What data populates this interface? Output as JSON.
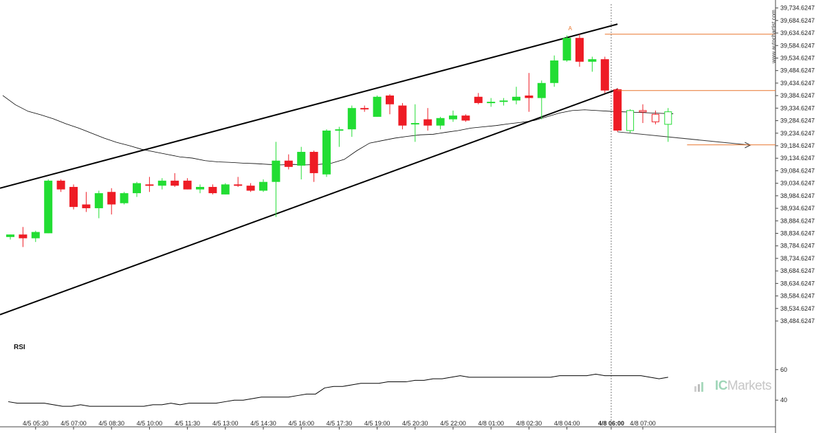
{
  "watermark": "www.autochartist.com",
  "brand": {
    "prefix": "IC",
    "name": "Markets"
  },
  "colors": {
    "up": "#22dd33",
    "down": "#ee1c25",
    "line": "#000000",
    "level": "#e8732a"
  },
  "chart_data": {
    "type": "candlestick",
    "y_ticks": [
      "39,734.6247",
      "39,684.6247",
      "39,634.6247",
      "39,584.6247",
      "39,534.6247",
      "39,484.6247",
      "39,434.6247",
      "39,384.6247",
      "39,334.6247",
      "39,284.6247",
      "39,234.6247",
      "39,184.6247",
      "39,134.6247",
      "39,084.6247",
      "39,034.6247",
      "38,984.6247",
      "38,934.6247",
      "38,884.6247",
      "38,834.6247",
      "38,784.6247",
      "38,734.6247",
      "38,684.6247",
      "38,634.6247",
      "38,584.6247",
      "38,534.6247",
      "38,484.6247"
    ],
    "ylim": [
      38460,
      39750
    ],
    "x_labels": [
      "4/5 05:30",
      "4/5 07:00",
      "4/5 08:30",
      "4/5 10:00",
      "4/5 11:30",
      "4/5 13:00",
      "4/5 14:30",
      "4/5 16:00",
      "4/5 17:30",
      "4/5 19:00",
      "4/5 20:30",
      "4/5 22:00",
      "4/8 01:00",
      "4/8 02:30",
      "4/8 04:00",
      "4/8 06:00",
      "4/8 07:00"
    ],
    "x_label_index": [
      2,
      5,
      8,
      11,
      14,
      17,
      20,
      23,
      26,
      29,
      32,
      35,
      38,
      41,
      44,
      47.5,
      50
    ],
    "bold_label_index": 15,
    "current_bar_index": 47.5,
    "candles": [
      {
        "o": 38820,
        "h": 38830,
        "l": 38810,
        "c": 38830
      },
      {
        "o": 38830,
        "h": 38860,
        "l": 38780,
        "c": 38815
      },
      {
        "o": 38815,
        "h": 38845,
        "l": 38800,
        "c": 38840
      },
      {
        "o": 38835,
        "h": 39050,
        "l": 38835,
        "c": 39045
      },
      {
        "o": 39045,
        "h": 39050,
        "l": 39000,
        "c": 39010
      },
      {
        "o": 39020,
        "h": 39030,
        "l": 38930,
        "c": 38940
      },
      {
        "o": 38950,
        "h": 39000,
        "l": 38920,
        "c": 38935
      },
      {
        "o": 38935,
        "h": 39005,
        "l": 38895,
        "c": 38995
      },
      {
        "o": 39000,
        "h": 39015,
        "l": 38910,
        "c": 38950
      },
      {
        "o": 38955,
        "h": 39000,
        "l": 38950,
        "c": 38995
      },
      {
        "o": 38995,
        "h": 39040,
        "l": 38980,
        "c": 39035
      },
      {
        "o": 39030,
        "h": 39060,
        "l": 39000,
        "c": 39025
      },
      {
        "o": 39025,
        "h": 39055,
        "l": 39010,
        "c": 39045
      },
      {
        "o": 39045,
        "h": 39075,
        "l": 39020,
        "c": 39025
      },
      {
        "o": 39045,
        "h": 39055,
        "l": 39010,
        "c": 39010
      },
      {
        "o": 39010,
        "h": 39030,
        "l": 38995,
        "c": 39020
      },
      {
        "o": 39020,
        "h": 39030,
        "l": 38990,
        "c": 38995
      },
      {
        "o": 38990,
        "h": 39035,
        "l": 38990,
        "c": 39030
      },
      {
        "o": 39030,
        "h": 39060,
        "l": 39020,
        "c": 39025
      },
      {
        "o": 39025,
        "h": 39035,
        "l": 39000,
        "c": 39005
      },
      {
        "o": 39005,
        "h": 39050,
        "l": 39000,
        "c": 39040
      },
      {
        "o": 39040,
        "h": 39200,
        "l": 38900,
        "c": 39125
      },
      {
        "o": 39125,
        "h": 39150,
        "l": 39090,
        "c": 39100
      },
      {
        "o": 39105,
        "h": 39180,
        "l": 39050,
        "c": 39160
      },
      {
        "o": 39160,
        "h": 39165,
        "l": 39040,
        "c": 39075
      },
      {
        "o": 39070,
        "h": 39250,
        "l": 39060,
        "c": 39245
      },
      {
        "o": 39245,
        "h": 39260,
        "l": 39180,
        "c": 39250
      },
      {
        "o": 39250,
        "h": 39345,
        "l": 39220,
        "c": 39335
      },
      {
        "o": 39335,
        "h": 39345,
        "l": 39320,
        "c": 39330
      },
      {
        "o": 39300,
        "h": 39385,
        "l": 39300,
        "c": 39380
      },
      {
        "o": 39385,
        "h": 39390,
        "l": 39310,
        "c": 39350
      },
      {
        "o": 39345,
        "h": 39355,
        "l": 39250,
        "c": 39265
      },
      {
        "o": 39270,
        "h": 39350,
        "l": 39200,
        "c": 39275
      },
      {
        "o": 39290,
        "h": 39335,
        "l": 39245,
        "c": 39265
      },
      {
        "o": 39265,
        "h": 39300,
        "l": 39250,
        "c": 39295
      },
      {
        "o": 39290,
        "h": 39325,
        "l": 39280,
        "c": 39305
      },
      {
        "o": 39305,
        "h": 39310,
        "l": 39280,
        "c": 39285
      },
      {
        "o": 39380,
        "h": 39395,
        "l": 39350,
        "c": 39355
      },
      {
        "o": 39355,
        "h": 39375,
        "l": 39340,
        "c": 39360
      },
      {
        "o": 39360,
        "h": 39375,
        "l": 39345,
        "c": 39365
      },
      {
        "o": 39365,
        "h": 39420,
        "l": 39350,
        "c": 39380
      },
      {
        "o": 39385,
        "h": 39475,
        "l": 39320,
        "c": 39375
      },
      {
        "o": 39375,
        "h": 39445,
        "l": 39290,
        "c": 39435
      },
      {
        "o": 39435,
        "h": 39545,
        "l": 39420,
        "c": 39525
      },
      {
        "o": 39525,
        "h": 39625,
        "l": 39520,
        "c": 39615
      },
      {
        "o": 39615,
        "h": 39630,
        "l": 39500,
        "c": 39520
      },
      {
        "o": 39520,
        "h": 39540,
        "l": 39480,
        "c": 39530
      },
      {
        "o": 39530,
        "h": 39540,
        "l": 39395,
        "c": 39405
      },
      {
        "o": 39410,
        "h": 39415,
        "l": 39240,
        "c": 39245
      },
      {
        "o": 39245,
        "h": 39330,
        "l": 39235,
        "c": 39325,
        "hollow": true
      },
      {
        "o": 39325,
        "h": 39350,
        "l": 39275,
        "c": 39320,
        "hollow": true
      },
      {
        "o": 39310,
        "h": 39325,
        "l": 39270,
        "c": 39280,
        "hollow": true
      },
      {
        "o": 39270,
        "h": 39335,
        "l": 39200,
        "c": 39320,
        "hollow": true
      }
    ],
    "moving_average": [
      39385,
      39348,
      39322,
      39308,
      39292,
      39272,
      39255,
      39235,
      39215,
      39198,
      39185,
      39170,
      39160,
      39150,
      39140,
      39135,
      39125,
      39120,
      39118,
      39115,
      39113,
      39110,
      39108,
      39110,
      39108,
      39110,
      39115,
      39130,
      39165,
      39195,
      39205,
      39215,
      39222,
      39228,
      39230,
      39238,
      39245,
      39255,
      39260,
      39265,
      39272,
      39278,
      39285,
      39300,
      39315,
      39325,
      39328,
      39325,
      39322,
      39320,
      39318,
      39316,
      39314,
      39312
    ],
    "channel": {
      "upper": [
        {
          "i": 0,
          "v": 39015
        },
        {
          "i": 48,
          "v": 39670
        }
      ],
      "lower": [
        {
          "i": 0,
          "v": 38510
        },
        {
          "i": 48,
          "v": 39410
        }
      ]
    },
    "projection": [
      {
        "i": 48,
        "v": 39240
      },
      {
        "i": 58.5,
        "v": 39187
      }
    ],
    "levels": [
      {
        "v": 39630,
        "from": 47,
        "to": 60
      },
      {
        "v": 39405,
        "from": 48,
        "to": 60
      },
      {
        "v": 39188,
        "from": 53.5,
        "to": 60
      }
    ],
    "annotation": {
      "text": "A",
      "i": 44,
      "v": 39646
    },
    "rsi": {
      "title": "RSI",
      "ticks": [
        "60",
        "40"
      ],
      "tick_values": [
        60,
        40
      ],
      "ylim": [
        32,
        68
      ],
      "values": [
        39,
        38,
        38,
        38,
        38,
        37,
        36,
        36,
        37,
        36,
        36,
        36,
        36,
        36,
        36,
        36,
        37,
        37,
        38,
        37,
        38,
        38,
        38,
        38,
        39,
        40,
        40,
        41,
        42,
        42,
        42,
        42,
        43,
        44,
        44,
        48,
        49,
        49,
        50,
        51,
        51,
        51,
        52,
        52,
        52,
        53,
        53,
        54,
        54,
        55,
        56,
        55,
        55,
        55,
        55,
        55,
        55,
        55,
        55,
        55,
        55,
        56,
        56,
        56,
        56,
        57,
        56,
        56,
        56,
        56,
        56,
        55,
        54,
        55
      ]
    }
  }
}
